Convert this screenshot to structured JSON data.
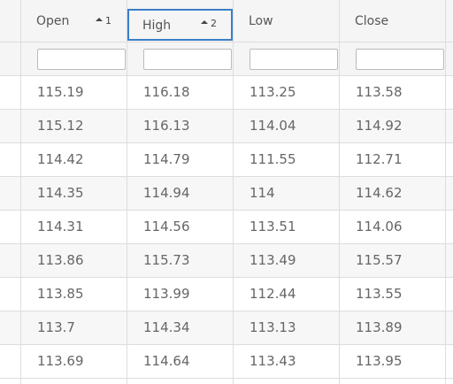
{
  "columns": [
    {
      "label": "Open",
      "sort_order": "1"
    },
    {
      "label": "High",
      "sort_order": "2"
    },
    {
      "label": "Low",
      "sort_order": ""
    },
    {
      "label": "Close",
      "sort_order": ""
    }
  ],
  "filters": [
    {
      "value": "",
      "placeholder": ""
    },
    {
      "value": "",
      "placeholder": ""
    },
    {
      "value": "",
      "placeholder": ""
    },
    {
      "value": "",
      "placeholder": ""
    }
  ],
  "rows": [
    [
      "115.19",
      "116.18",
      "113.25",
      "113.58"
    ],
    [
      "115.12",
      "116.13",
      "114.04",
      "114.92"
    ],
    [
      "114.42",
      "114.79",
      "111.55",
      "112.71"
    ],
    [
      "114.35",
      "114.94",
      "114",
      "114.62"
    ],
    [
      "114.31",
      "114.56",
      "113.51",
      "114.06"
    ],
    [
      "113.86",
      "115.73",
      "113.49",
      "115.57"
    ],
    [
      "113.85",
      "113.99",
      "112.44",
      "113.55"
    ],
    [
      "113.7",
      "114.34",
      "113.13",
      "113.89"
    ],
    [
      "113.69",
      "114.64",
      "113.43",
      "113.95"
    ]
  ],
  "colors": {
    "header_bg": "#f5f5f5",
    "alt_row_bg": "#f7f7f7",
    "active_border": "#3c7fc6",
    "grid_line": "#dddddd"
  }
}
